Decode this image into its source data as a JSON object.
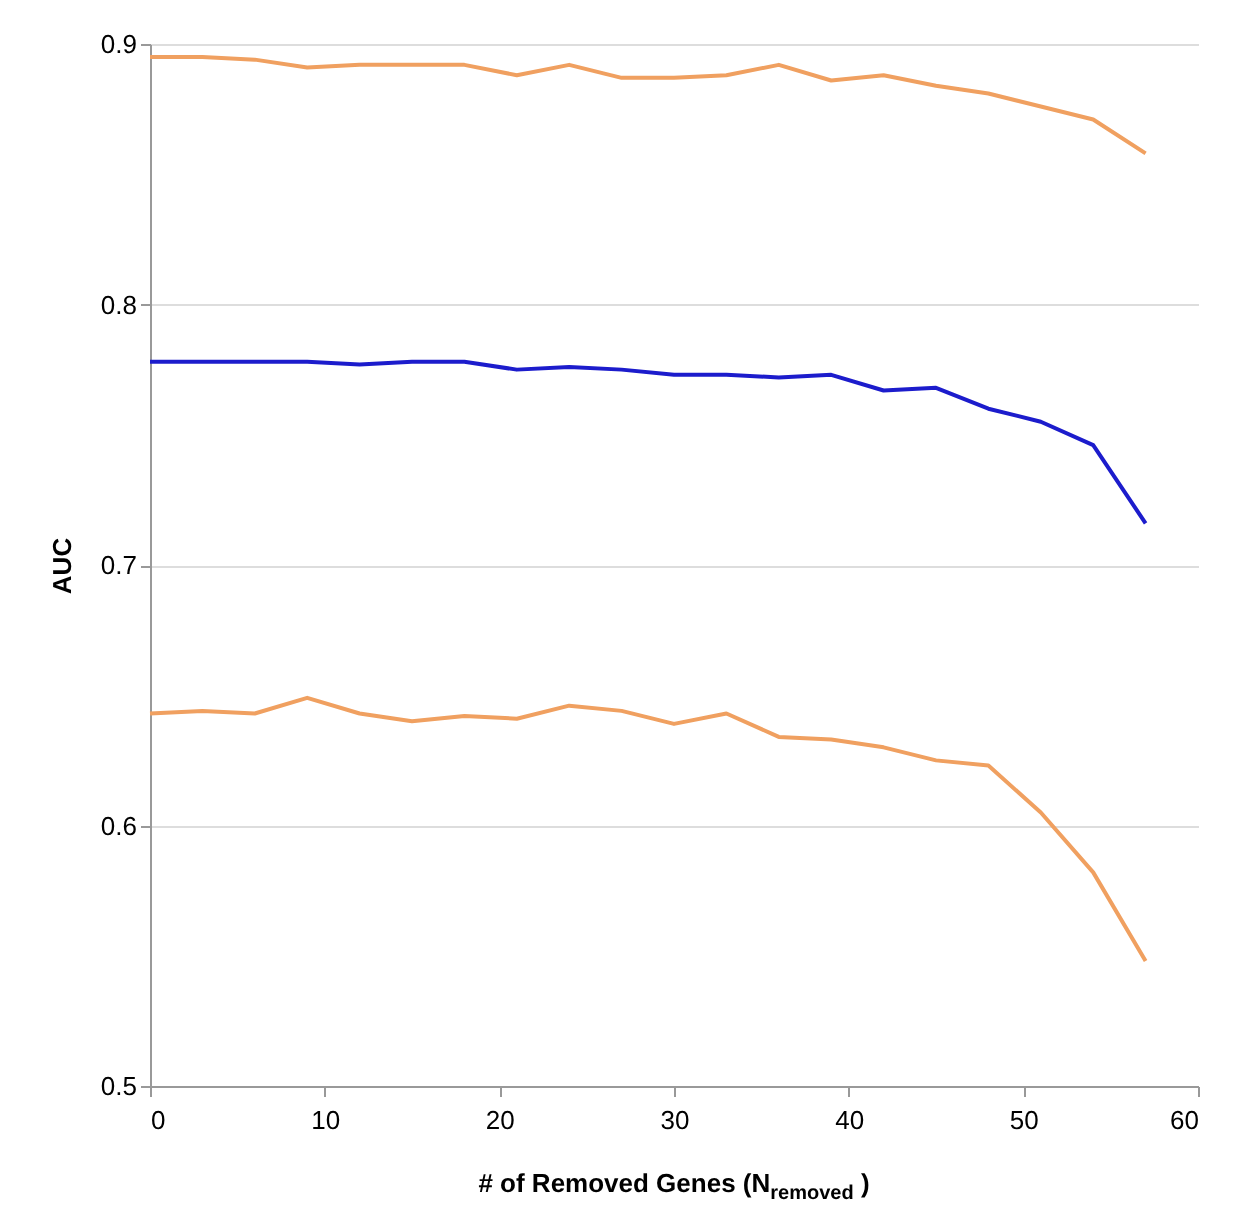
{
  "chart_data": {
    "type": "line",
    "xlabel": "# of Removed Genes (N$_{removed}$ )",
    "ylabel": "AUC",
    "x": [
      0,
      3,
      6,
      9,
      12,
      15,
      18,
      21,
      24,
      27,
      30,
      33,
      36,
      39,
      42,
      45,
      48,
      51,
      54,
      57
    ],
    "series": [
      {
        "color": "#f0a060",
        "values": [
          0.895,
          0.895,
          0.894,
          0.891,
          0.892,
          0.892,
          0.892,
          0.888,
          0.892,
          0.887,
          0.887,
          0.888,
          0.892,
          0.886,
          0.888,
          0.884,
          0.881,
          0.876,
          0.871,
          0.858
        ]
      },
      {
        "color": "#1c1ccc",
        "values": [
          0.778,
          0.778,
          0.778,
          0.778,
          0.777,
          0.778,
          0.778,
          0.775,
          0.776,
          0.775,
          0.773,
          0.773,
          0.772,
          0.773,
          0.767,
          0.768,
          0.76,
          0.755,
          0.746,
          0.716
        ]
      },
      {
        "color": "#f0a060",
        "values": [
          0.643,
          0.644,
          0.643,
          0.649,
          0.643,
          0.64,
          0.642,
          0.641,
          0.646,
          0.644,
          0.639,
          0.643,
          0.634,
          0.633,
          0.63,
          0.625,
          0.623,
          0.605,
          0.582,
          0.548
        ]
      }
    ],
    "xlim": [
      0,
      60
    ],
    "xticks": [
      0,
      10,
      20,
      30,
      40,
      50,
      60
    ],
    "ylim": [
      0.5,
      0.9
    ],
    "yticks": [
      0.5,
      0.6,
      0.7,
      0.8,
      0.9
    ],
    "grid": "y",
    "line_style": "solid",
    "marker": "none"
  }
}
